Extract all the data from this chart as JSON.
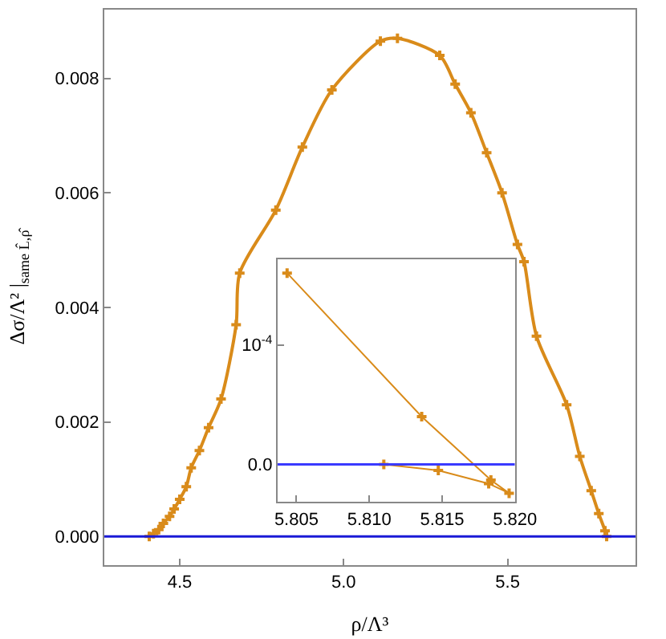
{
  "chart_data": [
    {
      "type": "line",
      "xlabel": "ρ/Λ³",
      "ylabel": "Δσ/Λ² |$_{same L̂,ρ̂}$",
      "marker": "cross",
      "xlim": [
        4.27,
        5.89
      ],
      "ylim": [
        -0.0005,
        0.0092
      ],
      "xticks": [
        {
          "value": 4.5,
          "label": "4.5"
        },
        {
          "value": 5.0,
          "label": "5.0"
        },
        {
          "value": 5.5,
          "label": "5.5"
        }
      ],
      "yticks": [
        {
          "value": 0,
          "label": "0.000"
        },
        {
          "value": 0.002,
          "label": "0.002"
        },
        {
          "value": 0.004,
          "label": "0.004"
        },
        {
          "value": 0.006,
          "label": "0.006"
        },
        {
          "value": 0.008,
          "label": "0.008"
        }
      ],
      "series": [
        {
          "color": "#d98b1a",
          "x": [
            4.407,
            4.42,
            4.436,
            4.45,
            4.469,
            4.483,
            4.5,
            4.52,
            4.535,
            4.56,
            4.588,
            4.626,
            4.672,
            4.683,
            4.793,
            4.874,
            4.964,
            5.112,
            5.164,
            5.293,
            5.34,
            5.388,
            5.436,
            5.483,
            5.53,
            5.55,
            5.588,
            5.68,
            5.72,
            5.755,
            5.778,
            5.797,
            5.802
          ],
          "values": [
            0,
            5e-05,
            0.00012,
            0.00023,
            0.00035,
            0.00048,
            0.00065,
            0.00087,
            0.0012,
            0.0015,
            0.0019,
            0.0024,
            0.0037,
            0.0046,
            0.0057,
            0.0068,
            0.0078,
            0.00865,
            0.0087,
            0.0084,
            0.0079,
            0.0074,
            0.0067,
            0.006,
            0.0051,
            0.0048,
            0.0035,
            0.0023,
            0.0014,
            0.0008,
            0.0004,
            0.0001,
            0
          ]
        }
      ],
      "ref_lines": [
        {
          "axis": "y",
          "value": 0,
          "color": "#1a1ad6"
        }
      ]
    },
    {
      "type": "line",
      "marker": "cross",
      "xlim": [
        5.8037,
        5.82
      ],
      "ylim": [
        -3.12e-05,
        0.0001717
      ],
      "xticks": [
        {
          "value": 5.805,
          "label": "5.805"
        },
        {
          "value": 5.81,
          "label": "5.810"
        },
        {
          "value": 5.815,
          "label": "5.815"
        },
        {
          "value": 5.82,
          "label": "5.820"
        }
      ],
      "yticks": [
        {
          "value": 0,
          "label": "0.0"
        },
        {
          "value": 0.0001,
          "label": "10$^{-4}$"
        }
      ],
      "series": [
        {
          "color": "#d98b1a",
          "x": [
            5.80436,
            5.8136,
            5.81835,
            5.8196,
            5.8182,
            5.81474,
            5.811
          ],
          "values": [
            0.00016,
            4e-05,
            -1.3e-05,
            -2.4e-05,
            -1.6e-05,
            -5e-06,
            0
          ]
        }
      ],
      "ref_lines": [
        {
          "axis": "y",
          "value": 0,
          "color": "#3a3aff"
        }
      ]
    }
  ]
}
